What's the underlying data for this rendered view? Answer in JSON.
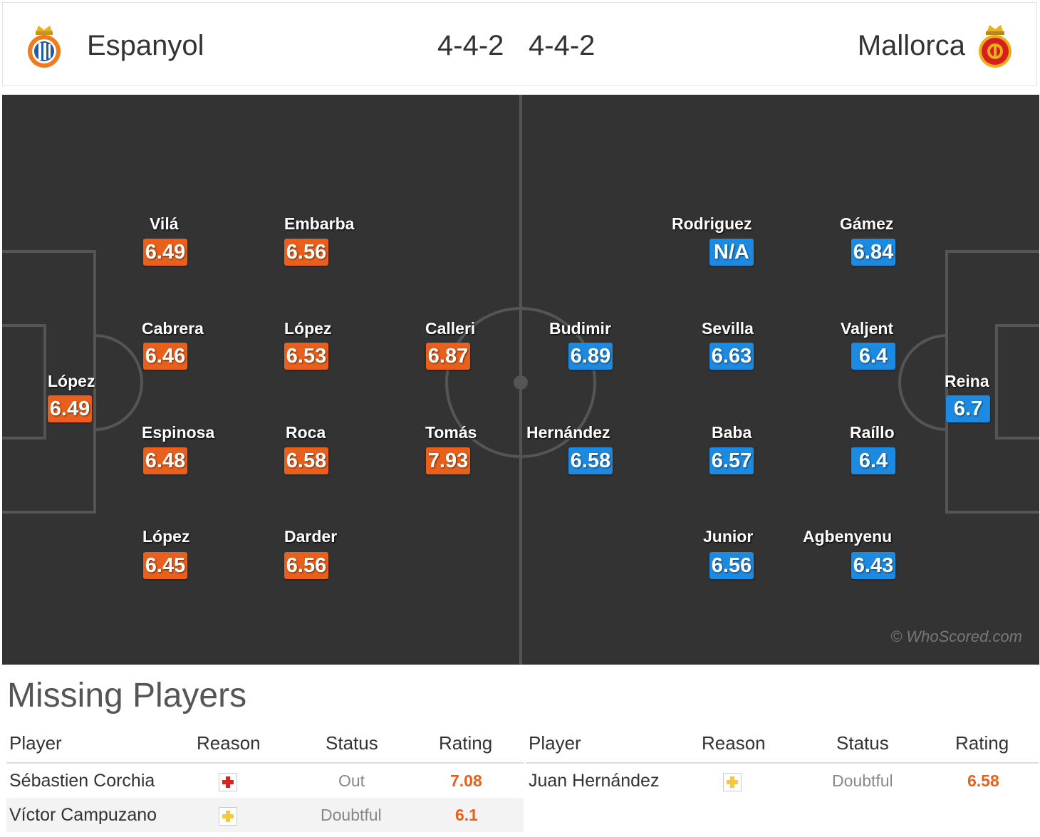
{
  "header": {
    "home_team": "Espanyol",
    "away_team": "Mallorca",
    "home_formation": "4-4-2",
    "away_formation": "4-4-2",
    "home_crest_icon": "espanyol-crest-icon",
    "away_crest_icon": "mallorca-crest-icon"
  },
  "colors": {
    "home_rating": "#e8601c",
    "away_rating": "#1c8ae0",
    "pitch": "#333333"
  },
  "pitch": {
    "watermark": "© WhoScored.com",
    "home_players": [
      {
        "name": "López",
        "rating": "6.49"
      },
      {
        "name": "Vilá",
        "rating": "6.49"
      },
      {
        "name": "Cabrera",
        "rating": "6.46"
      },
      {
        "name": "Espinosa",
        "rating": "6.48"
      },
      {
        "name": "López",
        "rating": "6.45"
      },
      {
        "name": "Embarba",
        "rating": "6.56"
      },
      {
        "name": "López",
        "rating": "6.53"
      },
      {
        "name": "Roca",
        "rating": "6.58"
      },
      {
        "name": "Darder",
        "rating": "6.56"
      },
      {
        "name": "Calleri",
        "rating": "6.87"
      },
      {
        "name": "Tomás",
        "rating": "7.93"
      }
    ],
    "away_players": [
      {
        "name": "Reina",
        "rating": "6.7"
      },
      {
        "name": "Gámez",
        "rating": "6.84"
      },
      {
        "name": "Valjent",
        "rating": "6.4"
      },
      {
        "name": "Raíllo",
        "rating": "6.4"
      },
      {
        "name": "Agbenyenu",
        "rating": "6.43"
      },
      {
        "name": "Rodriguez",
        "rating": "N/A"
      },
      {
        "name": "Sevilla",
        "rating": "6.63"
      },
      {
        "name": "Baba",
        "rating": "6.57"
      },
      {
        "name": "Junior",
        "rating": "6.56"
      },
      {
        "name": "Budimir",
        "rating": "6.89"
      },
      {
        "name": "Hernández",
        "rating": "6.58"
      }
    ]
  },
  "missing": {
    "title": "Missing Players",
    "columns": [
      "Player",
      "Reason",
      "Status",
      "Rating"
    ],
    "home": [
      {
        "player": "Sébastien Corchia",
        "reason_icon": "injury-cross-icon",
        "status": "Out",
        "rating": "7.08"
      },
      {
        "player": "Víctor Campuzano",
        "reason_icon": "doubtful-cross-icon",
        "status": "Doubtful",
        "rating": "6.1"
      }
    ],
    "away": [
      {
        "player": "Juan Hernández",
        "reason_icon": "doubtful-cross-icon",
        "status": "Doubtful",
        "rating": "6.58"
      }
    ]
  }
}
